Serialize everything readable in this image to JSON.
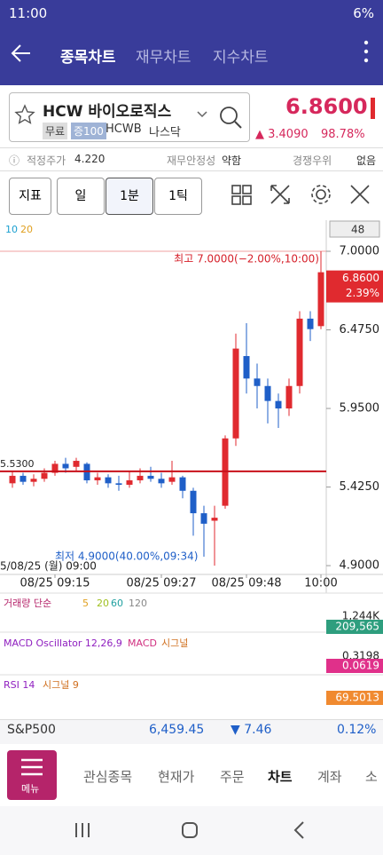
{
  "status_bar": {
    "time": "11:00",
    "battery": "6%"
  },
  "header": {
    "tabs": [
      "종목차트",
      "재무차트",
      "지수차트"
    ]
  },
  "stock": {
    "name": "HCW 바이오로직스",
    "badges": [
      "무료",
      "증100"
    ],
    "ticker": "HCWB",
    "market": "나스닥",
    "price": "6.8600",
    "change": "▲ 3.4090",
    "change_pct": "98.78%"
  },
  "info_row": {
    "fair_price_label": "적정주가",
    "fair_price": "4.220",
    "stability_label": "재무안정성",
    "stability": "약함",
    "moat_label": "경쟁우위",
    "moat": "없음"
  },
  "toolbar": {
    "buttons": [
      "지표",
      "일",
      "1분",
      "1틱"
    ],
    "count": "48"
  },
  "chart": {
    "type": "candlestick",
    "ma_labels": [
      "10",
      "20"
    ],
    "categories": [
      null,
      null,
      null,
      null,
      "08/25 09:15",
      null,
      null,
      null,
      null,
      null,
      null,
      null,
      null,
      null,
      "08/25 09:27",
      null,
      null,
      null,
      null,
      null,
      null,
      null,
      "08/25 09:48",
      null,
      null,
      null,
      null,
      null,
      null,
      "10:00"
    ],
    "open": [
      5.45,
      5.5,
      5.46,
      5.48,
      5.52,
      5.58,
      5.56,
      5.58,
      5.47,
      5.49,
      5.45,
      5.44,
      5.47,
      5.5,
      5.48,
      5.46,
      5.49,
      5.4,
      5.25,
      5.2,
      5.3,
      5.75,
      6.3,
      6.15,
      6.1,
      6.0,
      5.95,
      6.1,
      6.55,
      6.5
    ],
    "high": [
      5.53,
      5.52,
      5.51,
      5.55,
      5.6,
      5.62,
      5.62,
      5.59,
      5.52,
      5.51,
      5.5,
      5.53,
      5.55,
      5.56,
      5.52,
      5.6,
      5.5,
      5.42,
      5.3,
      5.3,
      5.77,
      6.45,
      6.52,
      6.25,
      6.15,
      6.05,
      6.15,
      6.6,
      6.6,
      7.0
    ],
    "low": [
      5.42,
      5.44,
      5.43,
      5.46,
      5.5,
      5.52,
      5.53,
      5.45,
      5.44,
      5.42,
      5.4,
      5.42,
      5.45,
      5.46,
      5.42,
      5.44,
      5.35,
      5.1,
      4.96,
      4.9,
      5.28,
      5.7,
      6.05,
      5.95,
      5.85,
      5.82,
      5.9,
      6.05,
      6.4,
      6.48
    ],
    "close": [
      5.5,
      5.46,
      5.48,
      5.52,
      5.58,
      5.55,
      5.6,
      5.47,
      5.49,
      5.45,
      5.44,
      5.47,
      5.5,
      5.48,
      5.45,
      5.49,
      5.4,
      5.25,
      5.18,
      5.22,
      5.75,
      6.35,
      6.15,
      6.1,
      6.0,
      5.95,
      6.1,
      6.55,
      6.48,
      6.86
    ],
    "up_color": "#e02a2f",
    "down_color": "#1f5fc8",
    "ylim": [
      4.853,
      7.184
    ],
    "yticks": [
      {
        "value": 4.9,
        "label": "4.9000"
      },
      {
        "value": 5.425,
        "label": "5.4250"
      },
      {
        "value": 5.95,
        "label": "5.9500"
      },
      {
        "value": 6.475,
        "label": "6.4750"
      },
      {
        "value": 7,
        "label": "7.0000"
      }
    ],
    "ref_line": {
      "value": 5.53,
      "label": "5.5300"
    },
    "high_note": "최고 7.0000(−2.00%,10:00)",
    "low_note": "최저 4.9000(40.00%,09:34)",
    "date_note": "5/08/25 (월) 09:00",
    "price_tag": "6.8600",
    "price_tag_pct": "2.39%"
  },
  "volume": {
    "title": "거래량 단순",
    "periods": [
      "5",
      "20",
      "60",
      "120"
    ],
    "max": "1,244K",
    "last": "209,565"
  },
  "macd": {
    "title": "MACD Oscillator 12,26,9",
    "series": [
      "MACD",
      "시그널"
    ],
    "max": "0.3198",
    "last": "0.0619"
  },
  "rsi": {
    "title": "RSI 14",
    "signal": "시그널 9",
    "last": "69.5013"
  },
  "index_row": {
    "name": "S&P500",
    "value": "6,459.45",
    "change": "▼ 7.46",
    "pct": "0.12%"
  },
  "nav": {
    "menu": "메뉴",
    "items": [
      "관심종목",
      "현재가",
      "주문",
      "차트",
      "계좌",
      "소"
    ]
  }
}
